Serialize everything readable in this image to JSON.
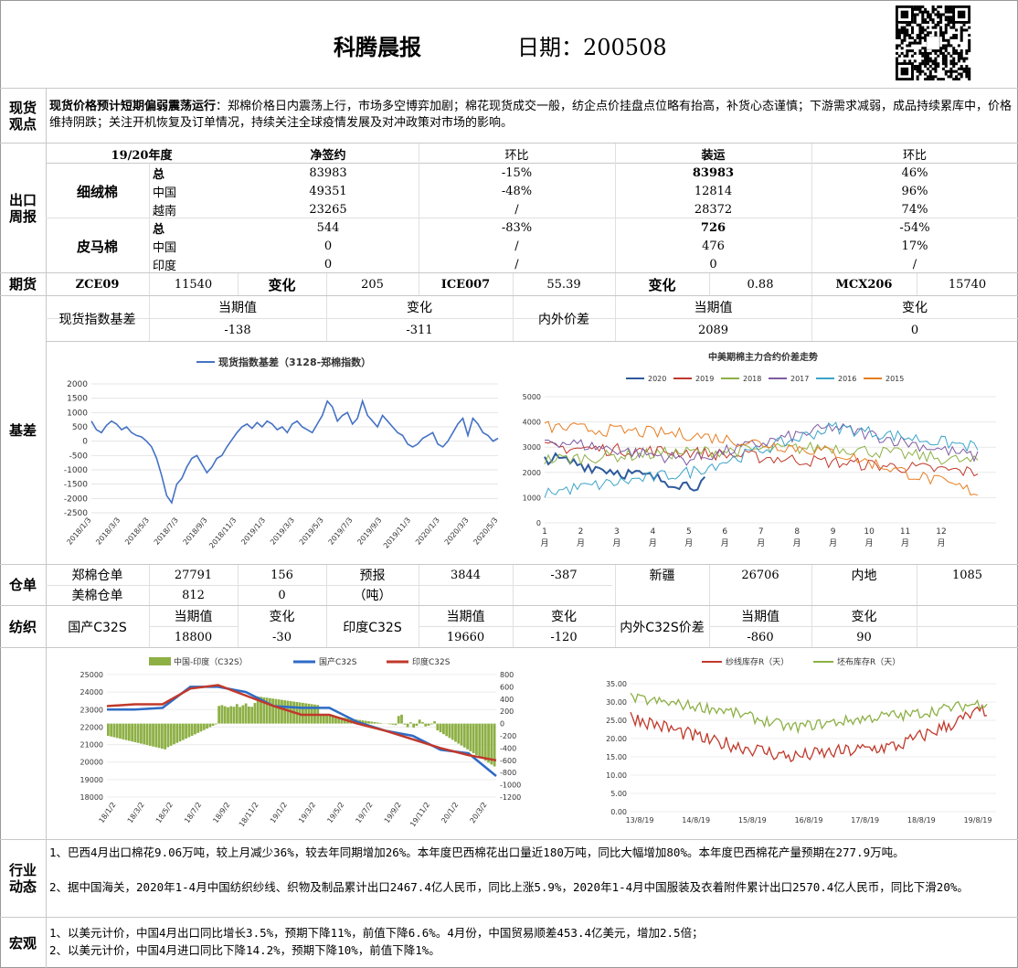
{
  "header": {
    "title": "科腾晨报",
    "date_label": "日期：200508"
  },
  "view": {
    "label": "现货\n观点",
    "lead": "现货价格预计短期偏弱震荡运行",
    "text": "：郑棉价格日内震荡上行，市场多空博弈加剧；棉花现货成交一般，纺企点价挂盘点位略有抬高，补货心态谨慎；下游需求减弱，成品持续累库中，价格维持阴跌；关注开机恢复及订单情况，持续关注全球疫情发展及对冲政策对市场的影响。"
  },
  "export": {
    "label": "出口\n周报",
    "header": [
      "19/20年度",
      "净签约",
      "环比",
      "装运",
      "环比"
    ],
    "groups": [
      {
        "name": "细绒棉",
        "rows": [
          {
            "c": "总",
            "net": "83983",
            "chg1": "-15%",
            "ship": "83983",
            "chg2": "46%"
          },
          {
            "c": "中国",
            "net": "49351",
            "chg1": "-48%",
            "ship": "12814",
            "chg2": "96%"
          },
          {
            "c": "越南",
            "net": "23265",
            "chg1": "/",
            "ship": "28372",
            "chg2": "74%"
          }
        ]
      },
      {
        "name": "皮马棉",
        "rows": [
          {
            "c": "总",
            "net": "544",
            "chg1": "-83%",
            "ship": "726",
            "chg2": "-54%"
          },
          {
            "c": "中国",
            "net": "0",
            "chg1": "/",
            "ship": "476",
            "chg2": "17%"
          },
          {
            "c": "印度",
            "net": "0",
            "chg1": "/",
            "ship": "0",
            "chg2": "/"
          }
        ]
      }
    ]
  },
  "futures": {
    "label": "期货",
    "zce": "ZCE09",
    "zce_val": "11540",
    "chg_label": "变化",
    "zce_chg": "205",
    "ice": "ICE007",
    "ice_val": "55.39",
    "ice_chg": "0.88",
    "mcx": "MCX206",
    "mcx_val": "15740"
  },
  "basis": {
    "label": "基差",
    "spot_label": "现货指数基差",
    "cur_label": "当期值",
    "chg_label": "变化",
    "spot_cur": "-138",
    "spot_chg": "-311",
    "inout_label": "内外价差",
    "inout_cur": "2089",
    "inout_chg": "0"
  },
  "warehouse": {
    "label": "仓单",
    "zc_label": "郑棉仓单",
    "zc_val": "27791",
    "zc_chg": "156",
    "fc_label": "预报",
    "fc_unit": "（吨）",
    "fc_val": "3844",
    "fc_chg": "-387",
    "xj_label": "新疆",
    "xj_val": "26706",
    "nd_label": "内地",
    "nd_val": "1085",
    "us_label": "美棉仓单",
    "us_val": "812",
    "us_chg": "0"
  },
  "textile": {
    "label": "纺织",
    "gc_label": "国产C32S",
    "cur_label": "当期值",
    "chg_label": "变化",
    "gc_cur": "18800",
    "gc_chg": "-30",
    "in_label": "印度C32S",
    "in_cur": "19660",
    "in_chg": "-120",
    "diff_label": "内外C32S价差",
    "diff_cur": "-860",
    "diff_chg": "90"
  },
  "industry": {
    "label": "行业\n动态",
    "p1": "1、巴西4月出口棉花9.06万吨，较上月减少36%，较去年同期增加26%。本年度巴西棉花出口量近180万吨，同比大幅增加80%。本年度巴西棉花产量预期在277.9万吨。",
    "p2": "2、据中国海关，2020年1-4月中国纺织纱线、织物及制品累计出口2467.4亿人民币，同比上涨5.9%，2020年1-4月中国服装及衣着附件累计出口2570.4亿人民币，同比下滑20%。"
  },
  "macro": {
    "label": "宏观",
    "p1": "1、以美元计价，中国4月出口同比增长3.5%，预期下降11%，前值下降6.6%。4月份，中国贸易顺差453.4亿美元，增加2.5倍；",
    "p2": "2、以美元计价，中国4月进口同比下降14.2%，预期下降10%，前值下降1%。"
  },
  "chart_data": [
    {
      "type": "line",
      "title": "现货指数基差（3128-郑棉指数）",
      "series": [
        {
          "name": "现货指数基差（3128-郑棉指数）",
          "color": "#4472c4",
          "values": [
            700,
            400,
            300,
            550,
            700,
            600,
            400,
            500,
            300,
            200,
            150,
            0,
            -200,
            -600,
            -1200,
            -1900,
            -2150,
            -1500,
            -1300,
            -900,
            -600,
            -500,
            -800,
            -1100,
            -900,
            -600,
            -500,
            -200,
            50,
            300,
            500,
            600,
            450,
            650,
            500,
            700,
            600,
            400,
            500,
            300,
            600,
            700,
            500,
            400,
            300,
            600,
            900,
            1400,
            1200,
            700,
            900,
            1000,
            600,
            800,
            1400,
            900,
            700,
            500,
            900,
            700,
            500,
            300,
            200,
            -100,
            -200,
            -100,
            100,
            200,
            300,
            -100,
            -200,
            0,
            300,
            600,
            800,
            200,
            800,
            600,
            300,
            200,
            0,
            100
          ]
        }
      ],
      "x_ticks": [
        "2018/1/3",
        "2018/3/3",
        "2018/5/3",
        "2018/7/3",
        "2018/9/3",
        "2018/11/3",
        "2019/1/3",
        "2019/3/3",
        "2019/5/3",
        "2019/7/3",
        "2019/9/3",
        "2019/11/3",
        "2020/1/3",
        "2020/3/3",
        "2020/5/3"
      ],
      "y_ticks": [
        "2000",
        "1500",
        "1000",
        "500",
        "0",
        "-500",
        "-1000",
        "-1500",
        "-2000",
        "-2500"
      ],
      "ylim": [
        -2500,
        2000
      ]
    },
    {
      "type": "line",
      "title": "中美期棉主力合约价差走势",
      "legend": [
        "2020",
        "2019",
        "2018",
        "2017",
        "2016",
        "2015"
      ],
      "colors": [
        "#2e5a9c",
        "#c0392b",
        "#8db045",
        "#7e5aa2",
        "#3ba3c9",
        "#e67e22"
      ],
      "x_ticks": [
        "1\n月",
        "2\n月",
        "3\n月",
        "4\n月",
        "5\n月",
        "6\n月",
        "7\n月",
        "8\n月",
        "9\n月",
        "10\n月",
        "11\n月",
        "12\n月"
      ],
      "y_ticks": [
        "5000",
        "4000",
        "3000",
        "2000",
        "1000",
        "0"
      ],
      "ylim": [
        0,
        5000
      ]
    },
    {
      "type": "bar",
      "title": "",
      "legend": [
        "中国-印度（C32S）",
        "国产C32S",
        "印度C32S"
      ],
      "x_ticks": [
        "18/1/2",
        "18/3/2",
        "18/5/2",
        "18/7/2",
        "18/9/2",
        "18/11/2",
        "19/1/2",
        "19/3/2",
        "19/5/2",
        "19/7/2",
        "19/9/2",
        "19/11/2",
        "20/1/2",
        "20/3/2"
      ],
      "y_left": [
        "25000",
        "24000",
        "23000",
        "22000",
        "21000",
        "20000",
        "19000",
        "18000"
      ],
      "y_right": [
        "800",
        "600",
        "400",
        "200",
        "0",
        "-200",
        "-400",
        "-600",
        "-800",
        "-1000",
        "-1200"
      ]
    },
    {
      "type": "line",
      "title": "",
      "legend": [
        "纱线库存R（天）",
        "坯布库存R（天）"
      ],
      "x_ticks": [
        "13/8/19",
        "14/8/19",
        "15/8/19",
        "16/8/19",
        "17/8/19",
        "18/8/19",
        "19/8/19"
      ],
      "y_ticks": [
        "35.00",
        "30.00",
        "25.00",
        "20.00",
        "15.00",
        "10.00",
        "5.00",
        "0.00"
      ],
      "ylim": [
        0,
        35
      ]
    }
  ]
}
